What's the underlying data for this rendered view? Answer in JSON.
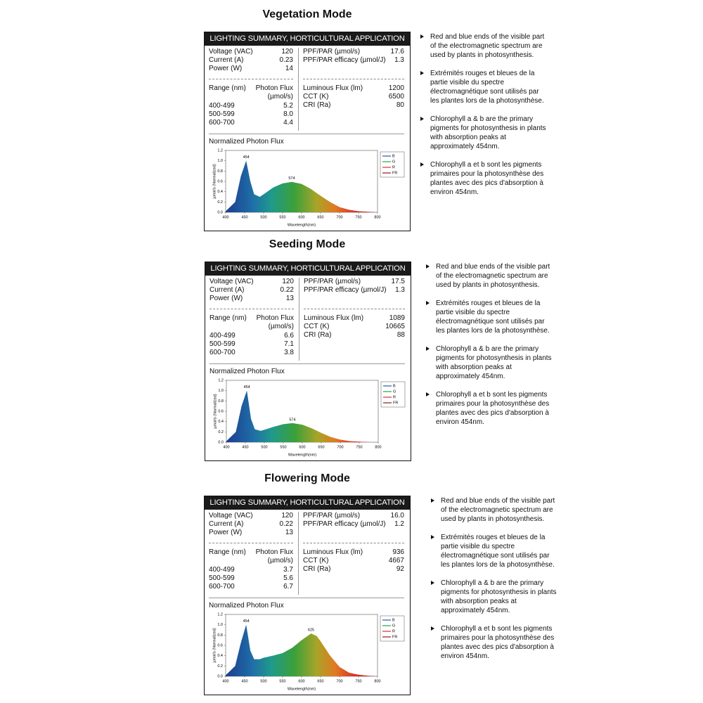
{
  "sections": [
    {
      "title": "Vegetation Mode",
      "summary": {
        "header": "LIGHTING SUMMARY, HORTICULTURAL APPLICATION",
        "electrical": [
          [
            "Voltage (VAC)",
            "120"
          ],
          [
            "Current (A)",
            "0.23"
          ],
          [
            "Power (W)",
            "14"
          ]
        ],
        "ppf": [
          [
            "PPF/PAR (µmol/s)",
            "17.6"
          ],
          [
            "PPF/PAR efficacy (µmol/J)",
            "1.3"
          ]
        ],
        "range_header": [
          "Range (nm)",
          "Photon Flux",
          "(µmol/s)"
        ],
        "ranges": [
          [
            "400-499",
            "5.2"
          ],
          [
            "500-599",
            "8.0"
          ],
          [
            "600-700",
            "4.4"
          ]
        ],
        "photometric": [
          [
            "Luminous Flux (lm)",
            "1200"
          ],
          [
            "CCT (K)",
            "6500"
          ],
          [
            "CRI (Ra)",
            "80"
          ]
        ]
      },
      "chart_data": {
        "type": "area",
        "title": "Normalized Photon Flux",
        "x_label": "Wavelength(nm)",
        "y_label": "µmol/s (Normalized)",
        "x": [
          400,
          425,
          440,
          454,
          465,
          475,
          490,
          500,
          525,
          550,
          574,
          600,
          625,
          650,
          675,
          700,
          725,
          750,
          775,
          800
        ],
        "values": [
          0.02,
          0.2,
          0.7,
          1.0,
          0.6,
          0.35,
          0.3,
          0.35,
          0.48,
          0.56,
          0.59,
          0.55,
          0.45,
          0.32,
          0.2,
          0.1,
          0.05,
          0.02,
          0.01,
          0
        ],
        "xlim": [
          400,
          800
        ],
        "ylim": [
          0,
          1.2
        ],
        "xticks": [
          400,
          450,
          500,
          550,
          600,
          650,
          700,
          750,
          800
        ],
        "yticks": [
          {
            "value": 0,
            "label": "0.0"
          },
          0.2,
          0.4,
          0.6,
          0.8,
          {
            "value": 1,
            "label": "1.0"
          },
          1.2
        ],
        "annotations": [
          454,
          574
        ],
        "legend": [
          {
            "name": "B",
            "color": "#1f5fb0"
          },
          {
            "name": "G",
            "color": "#2ea043"
          },
          {
            "name": "R",
            "color": "#d0312d"
          },
          {
            "name": "FR",
            "color": "#8b1a1a"
          }
        ]
      },
      "bullets": [
        "Red and blue ends of the visible part of the electromagnetic spectrum are used by plants in photosynthesis.",
        "Extrémités rouges et bleues de la partie visible du spectre électromagnétique sont utilisés par les plantes lors de la photosynthèse.",
        "Chlorophyll a & b are the primary pigments for photosynthesis in plants with  absorption peaks at approximately 454nm.",
        "Chlorophyll a et b sont les pigments primaires pour la photosynthèse des plantes avec des pics d'absorption à environ 454nm."
      ]
    },
    {
      "title": "Seeding Mode",
      "summary": {
        "header": "LIGHTING SUMMARY, HORTICULTURAL APPLICATION",
        "electrical": [
          [
            "Voltage (VAC)",
            "120"
          ],
          [
            "Current (A)",
            "0.22"
          ],
          [
            "Power (W)",
            "13"
          ]
        ],
        "ppf": [
          [
            "PPF/PAR (µmol/s)",
            "17.5"
          ],
          [
            "PPF/PAR efficacy (µmol/J)",
            "1.3"
          ]
        ],
        "range_header": [
          "Range (nm)",
          "Photon Flux",
          "(µmol/s)"
        ],
        "ranges": [
          [
            "400-499",
            "6.6"
          ],
          [
            "500-599",
            "7.1"
          ],
          [
            "600-700",
            "3.8"
          ]
        ],
        "photometric": [
          [
            "Luminous Flux (lm)",
            "1089"
          ],
          [
            "CCT (K)",
            "10665"
          ],
          [
            "CRI (Ra)",
            "88"
          ]
        ]
      },
      "chart_data": {
        "type": "area",
        "title": "Normalized Photon Flux",
        "x_label": "Wavelength(nm)",
        "y_label": "µmol/s (Normalized)",
        "x": [
          400,
          425,
          440,
          454,
          465,
          475,
          490,
          500,
          525,
          550,
          574,
          600,
          625,
          650,
          675,
          700,
          725,
          750,
          775,
          800
        ],
        "values": [
          0.02,
          0.2,
          0.7,
          1.0,
          0.45,
          0.25,
          0.22,
          0.24,
          0.3,
          0.35,
          0.37,
          0.34,
          0.27,
          0.18,
          0.1,
          0.05,
          0.02,
          0.01,
          0,
          0
        ],
        "xlim": [
          400,
          800
        ],
        "ylim": [
          0,
          1.2
        ],
        "xticks": [
          400,
          450,
          500,
          550,
          600,
          650,
          700,
          750,
          800
        ],
        "yticks": [
          {
            "value": 0,
            "label": "0.0"
          },
          0.2,
          0.4,
          0.6,
          0.8,
          {
            "value": 1,
            "label": "1.0"
          },
          1.2
        ],
        "annotations": [
          454,
          574
        ],
        "legend": [
          {
            "name": "B",
            "color": "#1f5fb0"
          },
          {
            "name": "G",
            "color": "#2ea043"
          },
          {
            "name": "R",
            "color": "#d0312d"
          },
          {
            "name": "FR",
            "color": "#8b1a1a"
          }
        ]
      },
      "bullets": [
        "Red and blue ends of the visible part of the electromagnetic spectrum are used by plants in photosynthesis.",
        "Extrémités rouges et bleues de la partie visible du spectre électromagnétique sont utilisés par les plantes lors de la photosynthèse.",
        "Chlorophyll a & b are the primary pigments for photosynthesis in plants with  absorption peaks at approximately 454nm.",
        "Chlorophyll a et b sont les pigments primaires pour la photosynthèse des plantes avec des pics d'absorption à environ 454nm."
      ]
    },
    {
      "title": "Flowering Mode",
      "summary": {
        "header": "LIGHTING SUMMARY, HORTICULTURAL APPLICATION",
        "electrical": [
          [
            "Voltage (VAC)",
            "120"
          ],
          [
            "Current (A)",
            "0.22"
          ],
          [
            "Power (W)",
            "13"
          ]
        ],
        "ppf": [
          [
            "PPF/PAR (µmol/s)",
            "16.0"
          ],
          [
            "PPF/PAR efficacy (µmol/J)",
            "1.2"
          ]
        ],
        "range_header": [
          "Range (nm)",
          "Photon Flux",
          "(µmol/s)"
        ],
        "ranges": [
          [
            "400-499",
            "3.7"
          ],
          [
            "500-599",
            "5.6"
          ],
          [
            "600-700",
            "6.7"
          ]
        ],
        "photometric": [
          [
            "Luminous Flux (lm)",
            "936"
          ],
          [
            "CCT (K)",
            "4667"
          ],
          [
            "CRI (Ra)",
            "92"
          ]
        ]
      },
      "chart_data": {
        "type": "area",
        "title": "Normalized Photon Flux",
        "x_label": "Wavelength(nm)",
        "y_label": "µmol/s (Normalized)",
        "x": [
          400,
          425,
          440,
          454,
          465,
          475,
          490,
          500,
          525,
          550,
          575,
          600,
          625,
          640,
          650,
          675,
          700,
          725,
          750,
          775,
          800
        ],
        "values": [
          0.02,
          0.2,
          0.65,
          1.0,
          0.5,
          0.33,
          0.33,
          0.36,
          0.4,
          0.45,
          0.55,
          0.7,
          0.83,
          0.78,
          0.68,
          0.4,
          0.18,
          0.07,
          0.03,
          0.01,
          0
        ],
        "xlim": [
          400,
          800
        ],
        "ylim": [
          0,
          1.2
        ],
        "xticks": [
          400,
          450,
          500,
          550,
          600,
          650,
          700,
          750,
          800
        ],
        "yticks": [
          {
            "value": 0,
            "label": "0.0"
          },
          0.2,
          0.4,
          0.6,
          0.8,
          {
            "value": 1,
            "label": "1.0"
          },
          1.2
        ],
        "annotations": [
          454,
          625
        ],
        "legend": [
          {
            "name": "B",
            "color": "#1f5fb0"
          },
          {
            "name": "G",
            "color": "#2ea043"
          },
          {
            "name": "R",
            "color": "#d0312d"
          },
          {
            "name": "FR",
            "color": "#8b1a1a"
          }
        ]
      },
      "bullets": [
        "Red and blue ends of the visible part of the electromagnetic spectrum are used by plants in photosynthesis.",
        "Extrémités rouges et bleues de la partie visible du spectre électromagnétique sont utilisés par les plantes lors de la photosynthèse.",
        "Chlorophyll a & b are the primary pigments for photosynthesis in plants with  absorption peaks at approximately 454nm.",
        "Chlorophyll a et b sont les pigments primaires pour la photosynthèse des plantes avec des pics d'absorption à environ 454nm."
      ]
    }
  ]
}
